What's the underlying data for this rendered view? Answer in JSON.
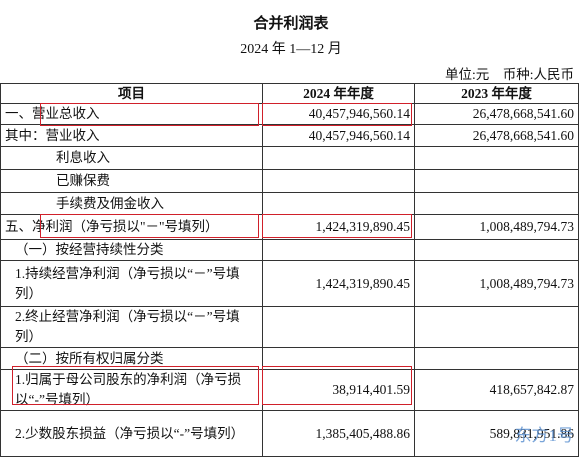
{
  "header": {
    "title": "合并利润表",
    "subtitle": "2024 年 1—12 月",
    "unit": "单位:元　币种:人民币"
  },
  "table": {
    "columns": [
      "项目",
      "2024 年年度",
      "2023 年年度"
    ],
    "rows": [
      [
        "一、营业总收入",
        "40,457,946,560.14",
        "26,478,668,541.60"
      ],
      [
        "其中：营业收入",
        "40,457,946,560.14",
        "26,478,668,541.60"
      ],
      [
        "利息收入"
      ],
      [
        "已赚保费"
      ],
      [
        "手续费及佣金收入"
      ],
      [
        "五、净利润（净亏损以\"－\"号填列）",
        "1,424,319,890.45",
        "1,008,489,794.73"
      ],
      [
        "（一）按经营持续性分类"
      ],
      [
        "1.持续经营净利润（净亏损以“－”号填列）",
        "1,424,319,890.45",
        "1,008,489,794.73"
      ],
      [
        "2.终止经营净利润（净亏损以“－”号填列）"
      ],
      [
        "（二）按所有权归属分类"
      ],
      [
        "1.归属于母公司股东的净利润（净亏损以“-”号填列）",
        "38,914,401.59",
        "418,657,842.87"
      ],
      [
        "2.少数股东损益（净亏损以“-”号填列）",
        "1,385,405,488.86",
        "589,831,951.86"
      ]
    ]
  },
  "watermark": "东方1号"
}
